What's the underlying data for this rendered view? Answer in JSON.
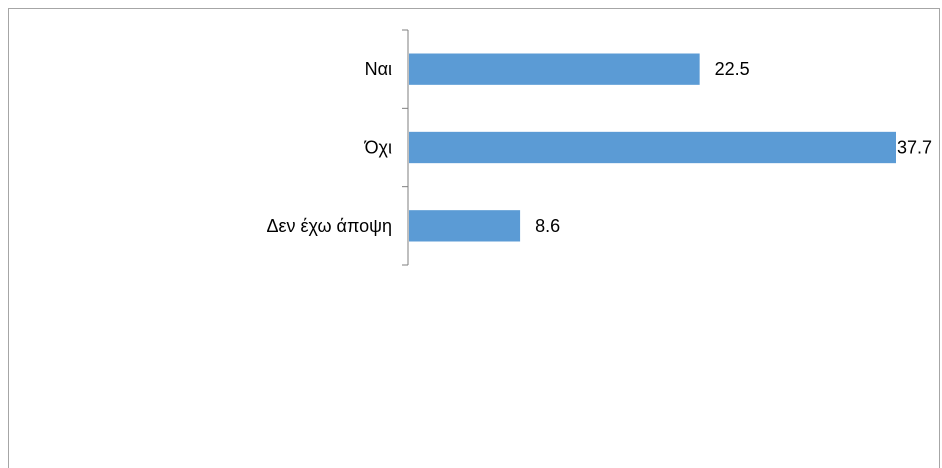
{
  "chart_data": {
    "type": "bar",
    "orientation": "horizontal",
    "categories": [
      "Ναι",
      "Όχι",
      "Δεν έχω άποψη"
    ],
    "values": [
      22.5,
      37.7,
      8.6
    ],
    "data_labels": [
      "22.5",
      "37.7",
      "8.6"
    ],
    "xlim": [
      0,
      37.7
    ],
    "grid": false,
    "legend": "none",
    "bar_color": "#5b9bd5"
  }
}
